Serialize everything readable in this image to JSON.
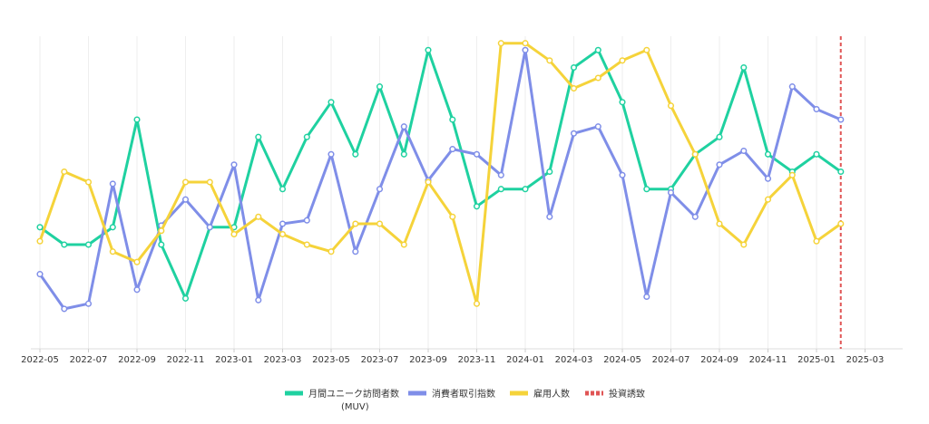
{
  "chart_data": {
    "type": "line",
    "x_tick_labels": [
      "2022-05",
      "2022-07",
      "2022-09",
      "2022-11",
      "2023-01",
      "2023-03",
      "2023-05",
      "2023-07",
      "2023-09",
      "2023-11",
      "2024-01",
      "2024-03",
      "2024-05",
      "2024-07",
      "2024-09",
      "2024-11",
      "2025-01",
      "2025-03"
    ],
    "x": [
      "2022-05",
      "2022-06",
      "2022-07",
      "2022-08",
      "2022-09",
      "2022-10",
      "2022-11",
      "2022-12",
      "2023-01",
      "2023-02",
      "2023-03",
      "2023-04",
      "2023-05",
      "2023-06",
      "2023-07",
      "2023-08",
      "2023-09",
      "2023-10",
      "2023-11",
      "2023-12",
      "2024-01",
      "2024-02",
      "2024-03",
      "2024-04",
      "2024-05",
      "2024-06",
      "2024-07",
      "2024-08",
      "2024-09",
      "2024-10",
      "2024-11",
      "2024-12",
      "2025-01",
      "2025-02"
    ],
    "ylim": [
      -1,
      17
    ],
    "grid": "vertical",
    "legend_position": "bottom",
    "series": [
      {
        "name": "月間ユニーク訪問者数\n(MUV)",
        "color": "#1fd1a0",
        "values": [
          6.0,
          5.0,
          5.0,
          6.0,
          12.2,
          5.0,
          1.9,
          6.0,
          6.0,
          11.2,
          8.2,
          11.2,
          13.2,
          10.2,
          14.1,
          10.2,
          16.2,
          12.2,
          7.2,
          8.2,
          8.2,
          9.2,
          15.2,
          16.2,
          13.2,
          8.2,
          8.2,
          10.2,
          11.2,
          15.2,
          10.2,
          9.2,
          10.2,
          9.2
        ]
      },
      {
        "name": "消費者取引指数",
        "color": "#7f8ee8",
        "values": [
          3.3,
          1.3,
          1.6,
          8.5,
          2.4,
          6.1,
          7.6,
          6.0,
          9.6,
          1.8,
          6.2,
          6.4,
          10.2,
          4.6,
          8.2,
          11.8,
          8.7,
          10.5,
          10.2,
          9.0,
          16.2,
          6.6,
          11.4,
          11.8,
          9.0,
          2.0,
          8.0,
          6.6,
          9.6,
          10.4,
          8.8,
          14.1,
          12.8,
          12.2
        ]
      },
      {
        "name": "雇用人数",
        "color": "#f5d33a",
        "values": [
          5.2,
          9.2,
          8.6,
          4.6,
          4.0,
          5.8,
          8.6,
          8.6,
          5.6,
          6.6,
          5.6,
          5.0,
          4.6,
          6.2,
          6.2,
          5.0,
          8.6,
          6.6,
          1.6,
          16.6,
          16.6,
          15.6,
          14.0,
          14.6,
          15.6,
          16.2,
          13.0,
          10.2,
          6.2,
          5.0,
          7.6,
          9.0,
          5.2,
          6.2
        ]
      }
    ],
    "vertical_markers": [
      {
        "name": "投資誘致",
        "color": "#e05555",
        "x": "2025-02",
        "style": "dashed"
      }
    ]
  }
}
